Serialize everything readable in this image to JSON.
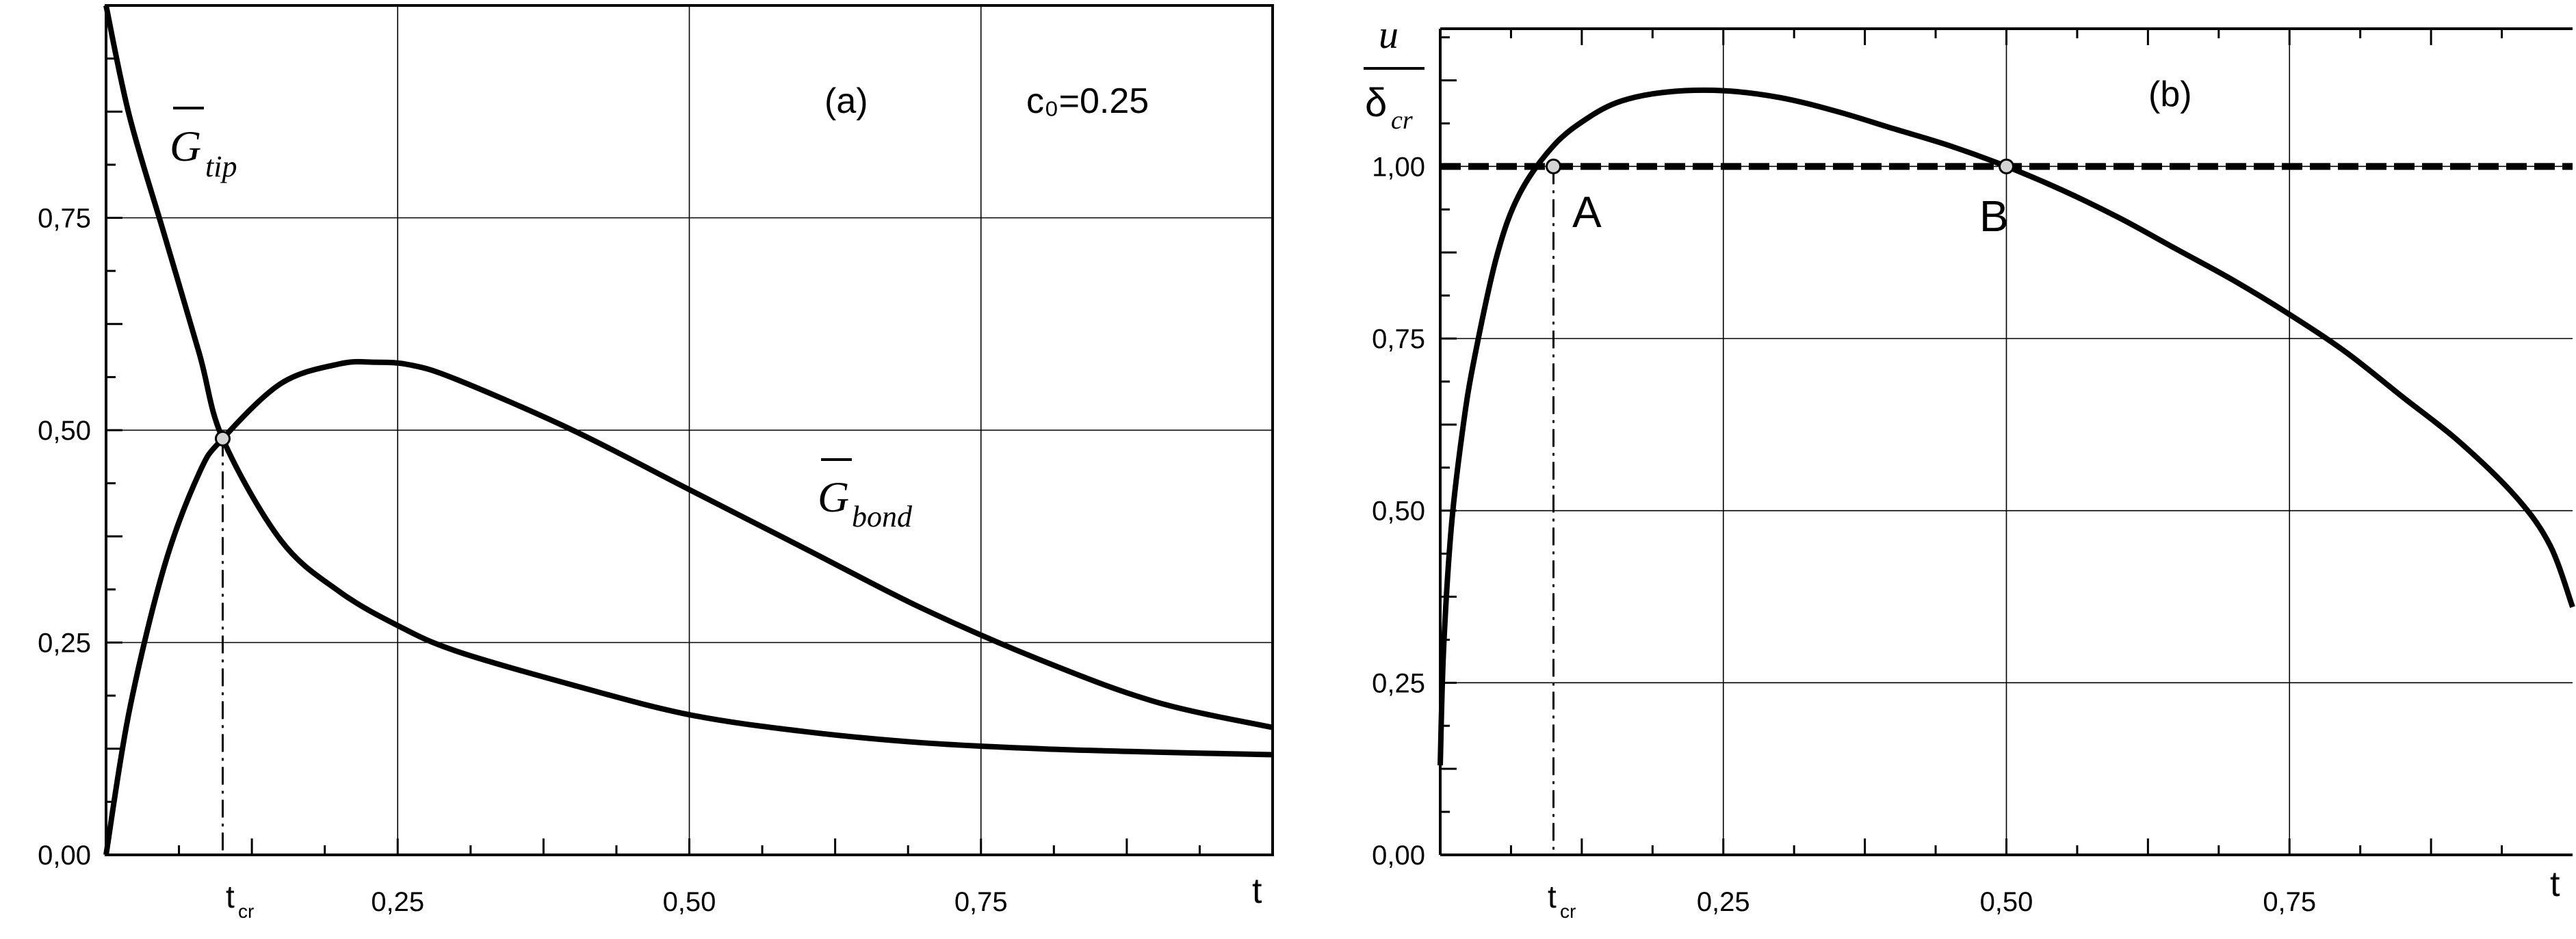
{
  "chart_data": [
    {
      "panel": "(a)",
      "type": "line",
      "parameter": "c₀=0.25",
      "xlabel": "t",
      "xlim": [
        0,
        1
      ],
      "ylim": [
        0,
        1
      ],
      "x_tick_values": [
        0.25,
        0.5,
        0.75
      ],
      "x_ticks": [
        "0,25",
        "0,50",
        "0,75"
      ],
      "y_tick_values": [
        0,
        0.25,
        0.5,
        0.75
      ],
      "y_ticks": [
        "0,00",
        "0,25",
        "0,50",
        "0,75"
      ],
      "grid": true,
      "series": [
        {
          "name": "G̅tip",
          "x": [
            0,
            0.02,
            0.05,
            0.08,
            0.1,
            0.15,
            0.2,
            0.25,
            0.3,
            0.4,
            0.5,
            0.6,
            0.7,
            0.8,
            0.9,
            1.0
          ],
          "y": [
            1.0,
            0.87,
            0.73,
            0.59,
            0.49,
            0.37,
            0.31,
            0.27,
            0.24,
            0.2,
            0.165,
            0.145,
            0.132,
            0.125,
            0.121,
            0.118
          ]
        },
        {
          "name": "G̅bond",
          "x": [
            0,
            0.02,
            0.05,
            0.08,
            0.1,
            0.15,
            0.2,
            0.23,
            0.26,
            0.3,
            0.4,
            0.5,
            0.6,
            0.7,
            0.8,
            0.9,
            1.0
          ],
          "y": [
            0.0,
            0.17,
            0.34,
            0.45,
            0.49,
            0.555,
            0.578,
            0.58,
            0.577,
            0.56,
            0.5,
            0.43,
            0.36,
            0.29,
            0.23,
            0.18,
            0.15
          ]
        }
      ],
      "marker": {
        "x": 0.1,
        "y": 0.49
      },
      "xmark_label": "t",
      "xmark_sub": "cr",
      "labels": {
        "tip_main": "G",
        "tip_sub": "tip",
        "bond_main": "G",
        "bond_sub": "bond"
      }
    },
    {
      "panel": "(b)",
      "type": "line",
      "xlabel": "t",
      "ylabel_num": "u",
      "ylabel_den": "δ",
      "ylabel_den_sub": "cr",
      "xlim": [
        0,
        1
      ],
      "ylim": [
        0,
        1.2
      ],
      "x_tick_values": [
        0.25,
        0.5,
        0.75
      ],
      "x_ticks": [
        "0,25",
        "0,50",
        "0,75"
      ],
      "y_tick_values": [
        0,
        0.25,
        0.5,
        0.75,
        1.0
      ],
      "y_ticks": [
        "0,00",
        "0,25",
        "0,50",
        "0,75",
        "1,00"
      ],
      "grid": true,
      "series": [
        {
          "name": "u/δcr",
          "x": [
            0.0,
            0.003,
            0.01,
            0.02,
            0.03,
            0.05,
            0.07,
            0.1,
            0.13,
            0.16,
            0.2,
            0.25,
            0.3,
            0.35,
            0.4,
            0.45,
            0.5,
            0.55,
            0.6,
            0.65,
            0.7,
            0.75,
            0.8,
            0.85,
            0.9,
            0.95,
            0.98,
            1.0
          ],
          "y": [
            0.13,
            0.3,
            0.48,
            0.62,
            0.72,
            0.87,
            0.96,
            1.03,
            1.07,
            1.095,
            1.108,
            1.11,
            1.1,
            1.08,
            1.055,
            1.03,
            1.0,
            0.965,
            0.925,
            0.88,
            0.835,
            0.785,
            0.73,
            0.665,
            0.6,
            0.52,
            0.45,
            0.36
          ]
        },
        {
          "name": "threshold",
          "style": "dashed",
          "x": [
            0,
            1
          ],
          "y": [
            1.0,
            1.0
          ]
        }
      ],
      "points": [
        {
          "label": "A",
          "x": 0.1,
          "y": 1.0
        },
        {
          "label": "B",
          "x": 0.5,
          "y": 1.0
        }
      ],
      "xmark_label": "t",
      "xmark_sub": "cr"
    }
  ]
}
